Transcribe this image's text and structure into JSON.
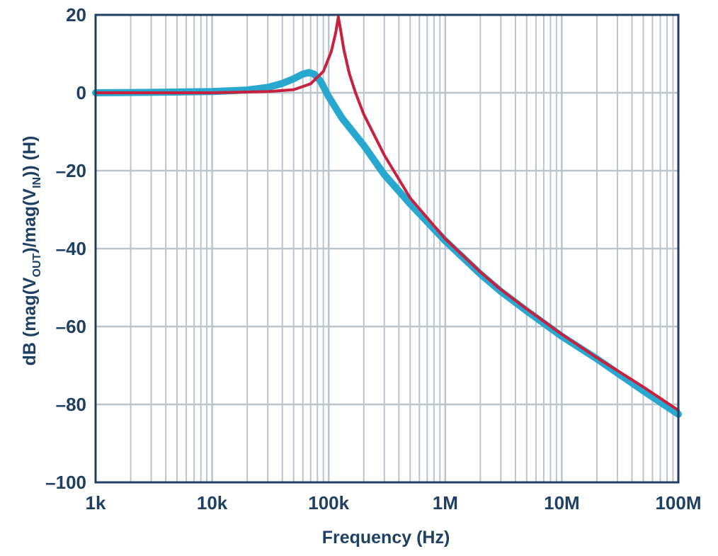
{
  "chart_data": {
    "type": "line",
    "xlabel": "Frequency (Hz)",
    "ylabel": {
      "prefix": "dB (mag(V",
      "sub1": "OUT",
      "mid": ")/mag(V",
      "sub2": "IN",
      "suffix": "))  (H)"
    },
    "x_scale": "log",
    "xlim": [
      1000,
      100000000
    ],
    "ylim": [
      -100,
      20
    ],
    "x_ticks": [
      {
        "value": 1000,
        "label": "1k"
      },
      {
        "value": 10000,
        "label": "10k"
      },
      {
        "value": 100000,
        "label": "100k"
      },
      {
        "value": 1000000,
        "label": "1M"
      },
      {
        "value": 10000000,
        "label": "10M"
      },
      {
        "value": 100000000,
        "label": "100M"
      }
    ],
    "y_ticks": [
      {
        "value": 20,
        "label": "20"
      },
      {
        "value": 0,
        "label": "0"
      },
      {
        "value": -20,
        "label": "–20"
      },
      {
        "value": -40,
        "label": "–40"
      },
      {
        "value": -60,
        "label": "–60"
      },
      {
        "value": -80,
        "label": "–80"
      },
      {
        "value": -100,
        "label": "–100"
      }
    ],
    "grid": true,
    "colors": {
      "axis": "#1f3f63",
      "grid": "#b9c4cc",
      "text": "#1f3f63"
    },
    "series": [
      {
        "color": "#29a8cf",
        "width": 10,
        "points": [
          [
            1000,
            0
          ],
          [
            3000,
            0.1
          ],
          [
            10000,
            0.3
          ],
          [
            20000,
            0.7
          ],
          [
            30000,
            1.4
          ],
          [
            40000,
            2.4
          ],
          [
            50000,
            3.6
          ],
          [
            60000,
            4.8
          ],
          [
            68000,
            5.2
          ],
          [
            75000,
            4.8
          ],
          [
            85000,
            3.0
          ],
          [
            100000,
            -1.0
          ],
          [
            130000,
            -6.5
          ],
          [
            200000,
            -13.5
          ],
          [
            300000,
            -21.0
          ],
          [
            500000,
            -28.5
          ],
          [
            1000000,
            -38.0
          ],
          [
            2000000,
            -46.5
          ],
          [
            3000000,
            -51.0
          ],
          [
            5000000,
            -56.0
          ],
          [
            10000000,
            -62.5
          ],
          [
            20000000,
            -68.3
          ],
          [
            50000000,
            -76.5
          ],
          [
            100000000,
            -82.5
          ]
        ]
      },
      {
        "color": "#c8203d",
        "width": 4,
        "points": [
          [
            1000,
            0
          ],
          [
            10000,
            0
          ],
          [
            30000,
            0.3
          ],
          [
            50000,
            0.8
          ],
          [
            70000,
            2.3
          ],
          [
            90000,
            5.5
          ],
          [
            105000,
            10.5
          ],
          [
            115000,
            15.5
          ],
          [
            121000,
            19.5
          ],
          [
            125000,
            17.0
          ],
          [
            135000,
            11.0
          ],
          [
            150000,
            5.0
          ],
          [
            170000,
            0.0
          ],
          [
            200000,
            -5.5
          ],
          [
            300000,
            -16.0
          ],
          [
            500000,
            -27.0
          ],
          [
            1000000,
            -37.5
          ],
          [
            2000000,
            -46.0
          ],
          [
            3000000,
            -50.5
          ],
          [
            5000000,
            -55.5
          ],
          [
            10000000,
            -62.0
          ],
          [
            20000000,
            -68.0
          ],
          [
            50000000,
            -75.5
          ],
          [
            100000000,
            -81.5
          ]
        ]
      }
    ]
  }
}
